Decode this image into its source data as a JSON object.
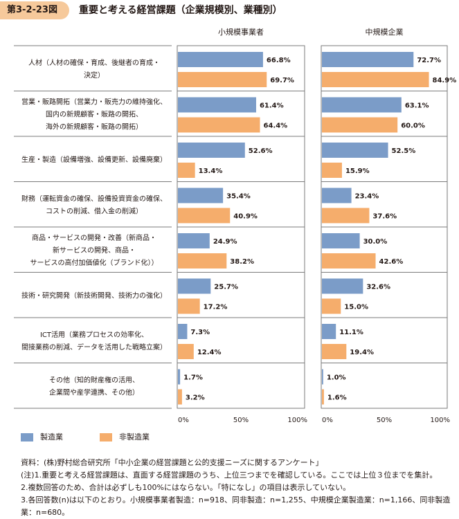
{
  "header": {
    "figure_number": "第3-2-23図",
    "title": "重要と考える経営課題（企業規模別、業種別）"
  },
  "chart_data": {
    "type": "bar",
    "orientation": "horizontal",
    "panels": [
      {
        "title": "小規模事業者",
        "series": [
          {
            "name": "製造業",
            "values": [
              66.8,
              61.4,
              52.6,
              35.4,
              24.9,
              25.7,
              7.3,
              1.7
            ]
          },
          {
            "name": "非製造業",
            "values": [
              69.7,
              64.4,
              13.4,
              40.9,
              38.2,
              17.2,
              12.4,
              3.2
            ]
          }
        ]
      },
      {
        "title": "中規模企業",
        "series": [
          {
            "name": "製造業",
            "values": [
              72.7,
              63.1,
              52.5,
              23.4,
              30.0,
              32.6,
              11.1,
              1.0
            ]
          },
          {
            "name": "非製造業",
            "values": [
              84.9,
              60.0,
              15.9,
              37.6,
              42.6,
              15.0,
              19.4,
              1.6
            ]
          }
        ]
      }
    ],
    "categories": [
      [
        "人材（人材の確保・育成、後継者の育成・",
        "決定）"
      ],
      [
        "営業・販路開拓（営業力・販売力の維持強化、",
        "国内の新規顧客・販路の開拓、",
        "海外の新規顧客・販路の開拓）"
      ],
      [
        "生産・製造（設備増強、設備更新、設備廃棄）"
      ],
      [
        "財務（運転資金の確保、設備投資資金の確保、",
        "コストの削減、借入金の削減）"
      ],
      [
        "商品・サービスの開発・改善（新商品・",
        "新サービスの開発、商品・",
        "サービスの高付加価値化（ブランド化））"
      ],
      [
        "技術・研究開発（新技術開発、技術力の強化）"
      ],
      [
        "ICT活用（業務プロセスの効率化、",
        "間接業務の削減、データを活用した戦略立案）"
      ],
      [
        "その他（知的財産権の活用、",
        "企業間や産学連携、その他）"
      ]
    ],
    "xlim": [
      0,
      100
    ],
    "x_ticks": [
      "0%",
      "50%",
      "100%"
    ],
    "value_suffix": "%",
    "legend_position": "bottom-left",
    "colors": {
      "manufacturing": "#7b9cc8",
      "non_manufacturing": "#f5ad6c"
    }
  },
  "legend": {
    "manufacturing": "製造業",
    "non_manufacturing": "非製造業"
  },
  "notes": [
    "資料：(株)野村総合研究所「中小企業の経営課題と公的支援ニーズに関するアンケート」",
    "(注)1.重要と考える経営課題は、直面する経営課題のうち、上位三つまでを確認している。ここでは上位３位までを集計。",
    "2.複数回答のため、合計は必ずしも100%にはならない。「特になし」の項目は表示していない。",
    "3.各回答数(n)は以下のとおり。小規模事業者製造：n=918、同非製造：n=1,255、中規模企業製造業：n=1,166、同非製造業：n=680。"
  ]
}
